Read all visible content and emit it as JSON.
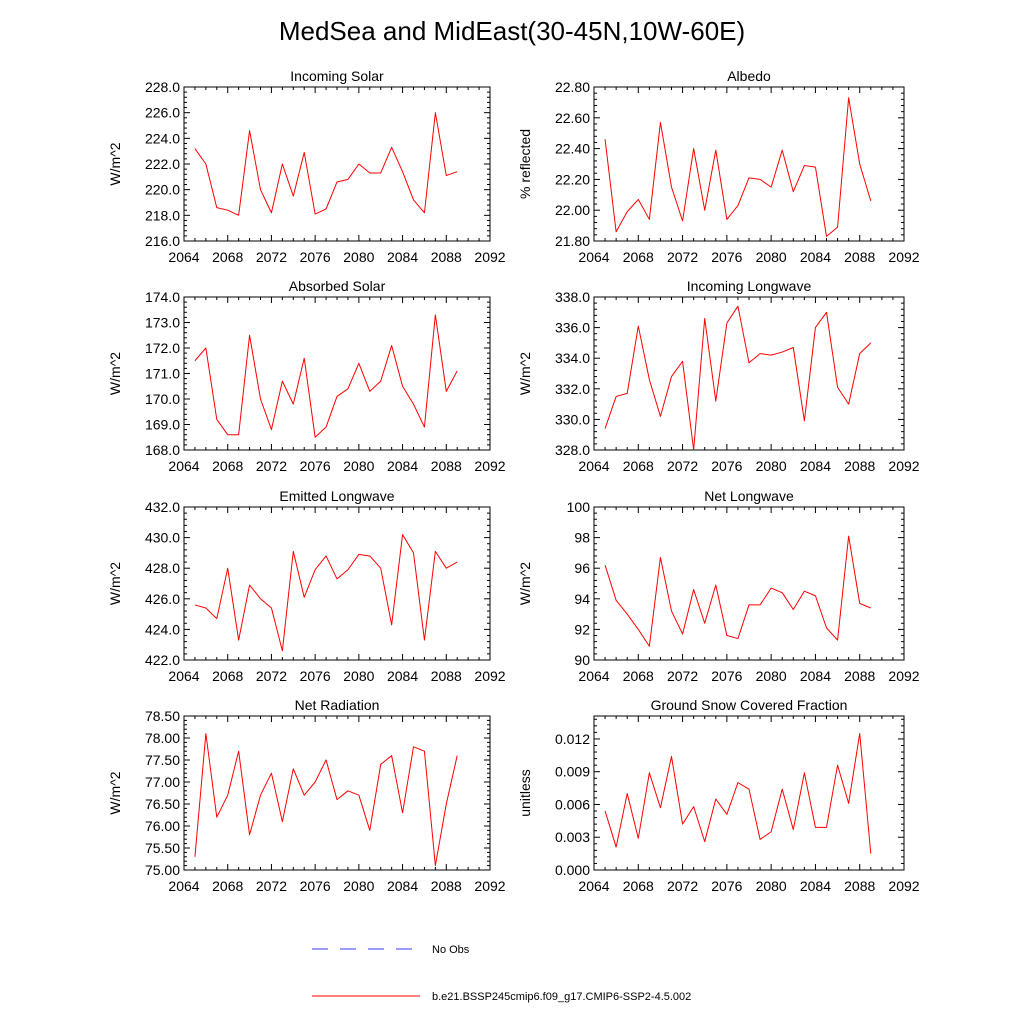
{
  "figure_title": "MedSea and MidEast(30-45N,10W-60E)",
  "legend": [
    {
      "label": "No Obs",
      "color": "#3a3aff",
      "dash": true
    },
    {
      "label": "b.e21.BSSP245cmip6.f09_g17.CMIP6-SSP2-4.5.002",
      "color": "#ff0000",
      "dash": false
    }
  ],
  "chart_data": [
    {
      "type": "line",
      "title": "Incoming Solar",
      "ylabel": "W/m^2",
      "xlim": [
        2064,
        2092
      ],
      "xticks": [
        2064,
        2068,
        2072,
        2076,
        2080,
        2084,
        2088,
        2092
      ],
      "ylim": [
        216,
        228
      ],
      "yticks": [
        216,
        218,
        220,
        222,
        224,
        226,
        228
      ],
      "ytick_labels": [
        "216.0",
        "218.0",
        "220.0",
        "222.0",
        "224.0",
        "226.0",
        "228.0"
      ],
      "x": [
        2065,
        2066,
        2067,
        2068,
        2069,
        2070,
        2071,
        2072,
        2073,
        2074,
        2075,
        2076,
        2077,
        2078,
        2079,
        2080,
        2081,
        2082,
        2083,
        2084,
        2085,
        2086,
        2087,
        2088,
        2089
      ],
      "series": [
        {
          "color": "#ff0000",
          "values": [
            223.2,
            222.0,
            218.6,
            218.4,
            218.0,
            224.6,
            220.0,
            218.2,
            222.0,
            219.5,
            222.9,
            218.1,
            218.5,
            220.6,
            220.8,
            222.0,
            221.3,
            221.3,
            223.3,
            221.4,
            219.2,
            218.2,
            226.0,
            221.1,
            221.4
          ]
        }
      ]
    },
    {
      "type": "line",
      "title": "Albedo",
      "ylabel": "% reflected",
      "xlim": [
        2064,
        2092
      ],
      "xticks": [
        2064,
        2068,
        2072,
        2076,
        2080,
        2084,
        2088,
        2092
      ],
      "ylim": [
        21.8,
        22.8
      ],
      "yticks": [
        21.8,
        22.0,
        22.2,
        22.4,
        22.6,
        22.8
      ],
      "ytick_labels": [
        "21.80",
        "22.00",
        "22.20",
        "22.40",
        "22.60",
        "22.80"
      ],
      "x": [
        2065,
        2066,
        2067,
        2068,
        2069,
        2070,
        2071,
        2072,
        2073,
        2074,
        2075,
        2076,
        2077,
        2078,
        2079,
        2080,
        2081,
        2082,
        2083,
        2084,
        2085,
        2086,
        2087,
        2088,
        2089
      ],
      "series": [
        {
          "color": "#ff0000",
          "values": [
            22.46,
            21.86,
            21.99,
            22.07,
            21.94,
            22.57,
            22.15,
            21.93,
            22.4,
            22.0,
            22.39,
            21.94,
            22.03,
            22.21,
            22.2,
            22.15,
            22.39,
            22.12,
            22.29,
            22.28,
            21.83,
            21.89,
            22.73,
            22.3,
            22.06
          ]
        }
      ]
    },
    {
      "type": "line",
      "title": "Absorbed Solar",
      "ylabel": "W/m^2",
      "xlim": [
        2064,
        2092
      ],
      "xticks": [
        2064,
        2068,
        2072,
        2076,
        2080,
        2084,
        2088,
        2092
      ],
      "ylim": [
        168,
        174
      ],
      "yticks": [
        168,
        169,
        170,
        171,
        172,
        173,
        174
      ],
      "ytick_labels": [
        "168.0",
        "169.0",
        "170.0",
        "171.0",
        "172.0",
        "173.0",
        "174.0"
      ],
      "x": [
        2065,
        2066,
        2067,
        2068,
        2069,
        2070,
        2071,
        2072,
        2073,
        2074,
        2075,
        2076,
        2077,
        2078,
        2079,
        2080,
        2081,
        2082,
        2083,
        2084,
        2085,
        2086,
        2087,
        2088,
        2089
      ],
      "series": [
        {
          "color": "#ff0000",
          "values": [
            171.5,
            172.0,
            169.2,
            168.6,
            168.6,
            172.5,
            170.0,
            168.8,
            170.7,
            169.8,
            171.6,
            168.5,
            168.9,
            170.1,
            170.4,
            171.4,
            170.3,
            170.7,
            172.1,
            170.5,
            169.8,
            168.9,
            173.3,
            170.3,
            171.1
          ]
        }
      ]
    },
    {
      "type": "line",
      "title": "Incoming Longwave",
      "ylabel": "W/m^2",
      "xlim": [
        2064,
        2092
      ],
      "xticks": [
        2064,
        2068,
        2072,
        2076,
        2080,
        2084,
        2088,
        2092
      ],
      "ylim": [
        328,
        338
      ],
      "yticks": [
        328,
        330,
        332,
        334,
        336,
        338
      ],
      "ytick_labels": [
        "328.0",
        "330.0",
        "332.0",
        "334.0",
        "336.0",
        "338.0"
      ],
      "x": [
        2065,
        2066,
        2067,
        2068,
        2069,
        2070,
        2071,
        2072,
        2073,
        2074,
        2075,
        2076,
        2077,
        2078,
        2079,
        2080,
        2081,
        2082,
        2083,
        2084,
        2085,
        2086,
        2087,
        2088,
        2089
      ],
      "series": [
        {
          "color": "#ff0000",
          "values": [
            329.4,
            331.5,
            331.7,
            336.1,
            332.6,
            330.2,
            332.8,
            333.8,
            328.0,
            336.6,
            331.2,
            336.3,
            337.4,
            333.7,
            334.3,
            334.2,
            334.4,
            334.7,
            329.9,
            336.0,
            337.0,
            332.1,
            331.0,
            334.3,
            335.0
          ]
        }
      ]
    },
    {
      "type": "line",
      "title": "Emitted Longwave",
      "ylabel": "W/m^2",
      "xlim": [
        2064,
        2092
      ],
      "xticks": [
        2064,
        2068,
        2072,
        2076,
        2080,
        2084,
        2088,
        2092
      ],
      "ylim": [
        422,
        432
      ],
      "yticks": [
        422,
        424,
        426,
        428,
        430,
        432
      ],
      "ytick_labels": [
        "422.0",
        "424.0",
        "426.0",
        "428.0",
        "430.0",
        "432.0"
      ],
      "x": [
        2065,
        2066,
        2067,
        2068,
        2069,
        2070,
        2071,
        2072,
        2073,
        2074,
        2075,
        2076,
        2077,
        2078,
        2079,
        2080,
        2081,
        2082,
        2083,
        2084,
        2085,
        2086,
        2087,
        2088,
        2089
      ],
      "series": [
        {
          "color": "#ff0000",
          "values": [
            425.6,
            425.4,
            424.7,
            428.0,
            423.3,
            426.9,
            426.0,
            425.4,
            422.6,
            429.1,
            426.1,
            427.9,
            428.8,
            427.3,
            427.9,
            428.9,
            428.8,
            428.0,
            424.3,
            430.2,
            429.0,
            423.3,
            429.1,
            428.0,
            428.4
          ]
        }
      ]
    },
    {
      "type": "line",
      "title": "Net Longwave",
      "ylabel": "W/m^2",
      "xlim": [
        2064,
        2092
      ],
      "xticks": [
        2064,
        2068,
        2072,
        2076,
        2080,
        2084,
        2088,
        2092
      ],
      "ylim": [
        90,
        100
      ],
      "yticks": [
        90,
        92,
        94,
        96,
        98,
        100
      ],
      "ytick_labels": [
        "90",
        "92",
        "94",
        "96",
        "98",
        "100"
      ],
      "x": [
        2065,
        2066,
        2067,
        2068,
        2069,
        2070,
        2071,
        2072,
        2073,
        2074,
        2075,
        2076,
        2077,
        2078,
        2079,
        2080,
        2081,
        2082,
        2083,
        2084,
        2085,
        2086,
        2087,
        2088,
        2089
      ],
      "series": [
        {
          "color": "#ff0000",
          "values": [
            96.2,
            93.9,
            93.0,
            92.0,
            90.9,
            96.7,
            93.2,
            91.7,
            94.6,
            92.4,
            94.9,
            91.6,
            91.4,
            93.6,
            93.6,
            94.7,
            94.4,
            93.3,
            94.5,
            94.2,
            92.1,
            91.3,
            98.1,
            93.7,
            93.4
          ]
        }
      ]
    },
    {
      "type": "line",
      "title": "Net Radiation",
      "ylabel": "W/m^2",
      "xlim": [
        2064,
        2092
      ],
      "xticks": [
        2064,
        2068,
        2072,
        2076,
        2080,
        2084,
        2088,
        2092
      ],
      "ylim": [
        75.0,
        78.5
      ],
      "yticks": [
        75.0,
        75.5,
        76.0,
        76.5,
        77.0,
        77.5,
        78.0,
        78.5
      ],
      "ytick_labels": [
        "75.00",
        "75.50",
        "76.00",
        "76.50",
        "77.00",
        "77.50",
        "78.00",
        "78.50"
      ],
      "x": [
        2065,
        2066,
        2067,
        2068,
        2069,
        2070,
        2071,
        2072,
        2073,
        2074,
        2075,
        2076,
        2077,
        2078,
        2079,
        2080,
        2081,
        2082,
        2083,
        2084,
        2085,
        2086,
        2087,
        2088,
        2089
      ],
      "series": [
        {
          "color": "#ff0000",
          "values": [
            75.3,
            78.1,
            76.2,
            76.7,
            77.7,
            75.8,
            76.7,
            77.2,
            76.1,
            77.3,
            76.7,
            77.0,
            77.5,
            76.6,
            76.8,
            76.7,
            75.9,
            77.4,
            77.6,
            76.3,
            77.8,
            77.7,
            75.1,
            76.5,
            77.6
          ]
        }
      ]
    },
    {
      "type": "line",
      "title": "Ground Snow Covered Fraction",
      "ylabel": "unitless",
      "xlim": [
        2064,
        2092
      ],
      "xticks": [
        2064,
        2068,
        2072,
        2076,
        2080,
        2084,
        2088,
        2092
      ],
      "ylim": [
        0.0,
        0.0141
      ],
      "yticks": [
        0.0,
        0.003,
        0.006,
        0.009,
        0.012
      ],
      "ytick_labels": [
        "0.000",
        "0.003",
        "0.006",
        "0.009",
        "0.012"
      ],
      "x": [
        2065,
        2066,
        2067,
        2068,
        2069,
        2070,
        2071,
        2072,
        2073,
        2074,
        2075,
        2076,
        2077,
        2078,
        2079,
        2080,
        2081,
        2082,
        2083,
        2084,
        2085,
        2086,
        2087,
        2088,
        2089
      ],
      "series": [
        {
          "color": "#ff0000",
          "values": [
            0.0054,
            0.0021,
            0.007,
            0.0029,
            0.0089,
            0.0057,
            0.0104,
            0.0042,
            0.0058,
            0.0026,
            0.0065,
            0.0051,
            0.008,
            0.0074,
            0.0028,
            0.0035,
            0.0074,
            0.0037,
            0.0089,
            0.0039,
            0.0039,
            0.0096,
            0.0061,
            0.0125,
            0.0015
          ]
        }
      ]
    }
  ]
}
